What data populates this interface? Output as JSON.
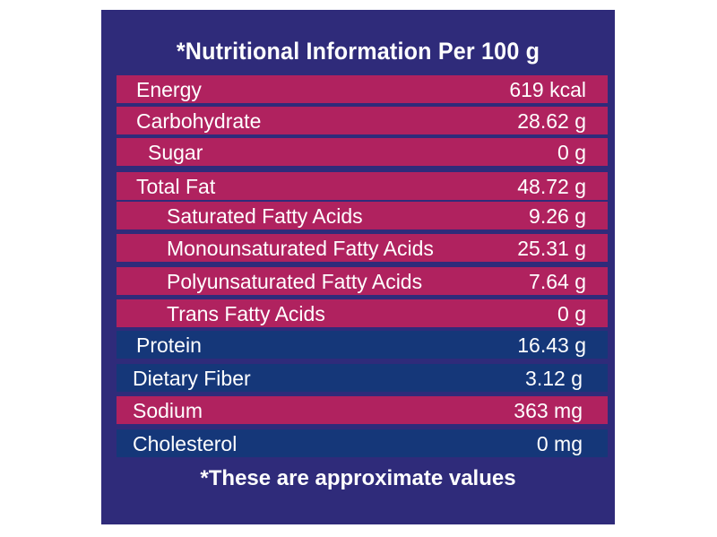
{
  "title": "*Nutritional Information Per 100 g",
  "rows": [
    {
      "name": "Energy",
      "value": "619 kcal"
    },
    {
      "name": "Carbohydrate",
      "value": "28.62 g"
    },
    {
      "name": "Sugar",
      "value": "0 g"
    },
    {
      "name": "Total Fat",
      "value": "48.72 g"
    },
    {
      "name": "Saturated Fatty Acids",
      "value": "9.26 g"
    },
    {
      "name": "Monounsaturated Fatty Acids",
      "value": "25.31 g"
    },
    {
      "name": "Polyunsaturated Fatty Acids",
      "value": "7.64 g"
    },
    {
      "name": "Trans Fatty Acids",
      "value": "0 g"
    },
    {
      "name": "Protein",
      "value": "16.43 g"
    },
    {
      "name": "Dietary Fiber",
      "value": "3.12 g"
    },
    {
      "name": "Sodium",
      "value": "363 mg"
    },
    {
      "name": "Cholesterol",
      "value": "0 mg"
    }
  ],
  "footer": "*These are approximate values",
  "colors": {
    "panel": "#2f2b7a",
    "row_highlight": "#b0225f",
    "row_dark": "#153779",
    "text": "#ffffff"
  }
}
